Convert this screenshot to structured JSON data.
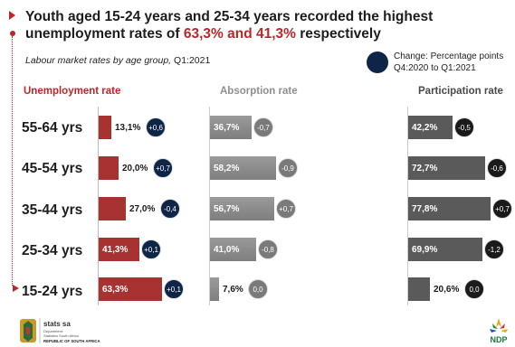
{
  "title": {
    "prefix": "Youth aged 15-24 years and 25-34 years recorded the highest unemployment rates of",
    "highlight": "63,3% and 41,3%",
    "suffix": "respectively"
  },
  "subtitle": {
    "label": "Labour market rates by age group,",
    "period": "Q1:2021"
  },
  "legend": {
    "line1": "Change: Percentage points",
    "line2": "Q4:2020 to Q1:2021"
  },
  "colors": {
    "unemployment": "#a83232",
    "absorption": "#8f8f8f",
    "participation": "#5a5a5a",
    "change_dark": "#0f2548",
    "change_black": "#1a1a1a",
    "accent": "#b8282a"
  },
  "logos": {
    "left_line1": "stats sa",
    "left_line2": "Department:",
    "left_line3": "Statistics South Africa",
    "left_line4": "REPUBLIC OF SOUTH AFRICA",
    "right": "NDP"
  },
  "chart_data": {
    "type": "bar",
    "categories": [
      "55-64 yrs",
      "45-54 yrs",
      "35-44 yrs",
      "25-34 yrs",
      "15-24 yrs"
    ],
    "panels": [
      {
        "name": "Unemployment rate",
        "values": [
          13.1,
          20.0,
          27.0,
          41.3,
          63.3
        ],
        "labels": [
          "13,1%",
          "20,0%",
          "27,0%",
          "41,3%",
          "63,3%"
        ],
        "changes": [
          "+0,6",
          "+0,7",
          "-0,4",
          "+0,1",
          "+0,1"
        ]
      },
      {
        "name": "Absorption rate",
        "values": [
          36.7,
          58.2,
          56.7,
          41.0,
          7.6
        ],
        "labels": [
          "36,7%",
          "58,2%",
          "56,7%",
          "41,0%",
          "7,6%"
        ],
        "changes": [
          "-0,7",
          "-0,9",
          "+0,7",
          "-0,8",
          "0,0"
        ]
      },
      {
        "name": "Participation rate",
        "values": [
          42.2,
          72.7,
          77.8,
          69.9,
          20.6
        ],
        "labels": [
          "42,2%",
          "72,7%",
          "77,8%",
          "69,9%",
          "20,6%"
        ],
        "changes": [
          "-0,5",
          "-0,6",
          "+0,7",
          "-1,2",
          "0,0"
        ]
      }
    ]
  }
}
